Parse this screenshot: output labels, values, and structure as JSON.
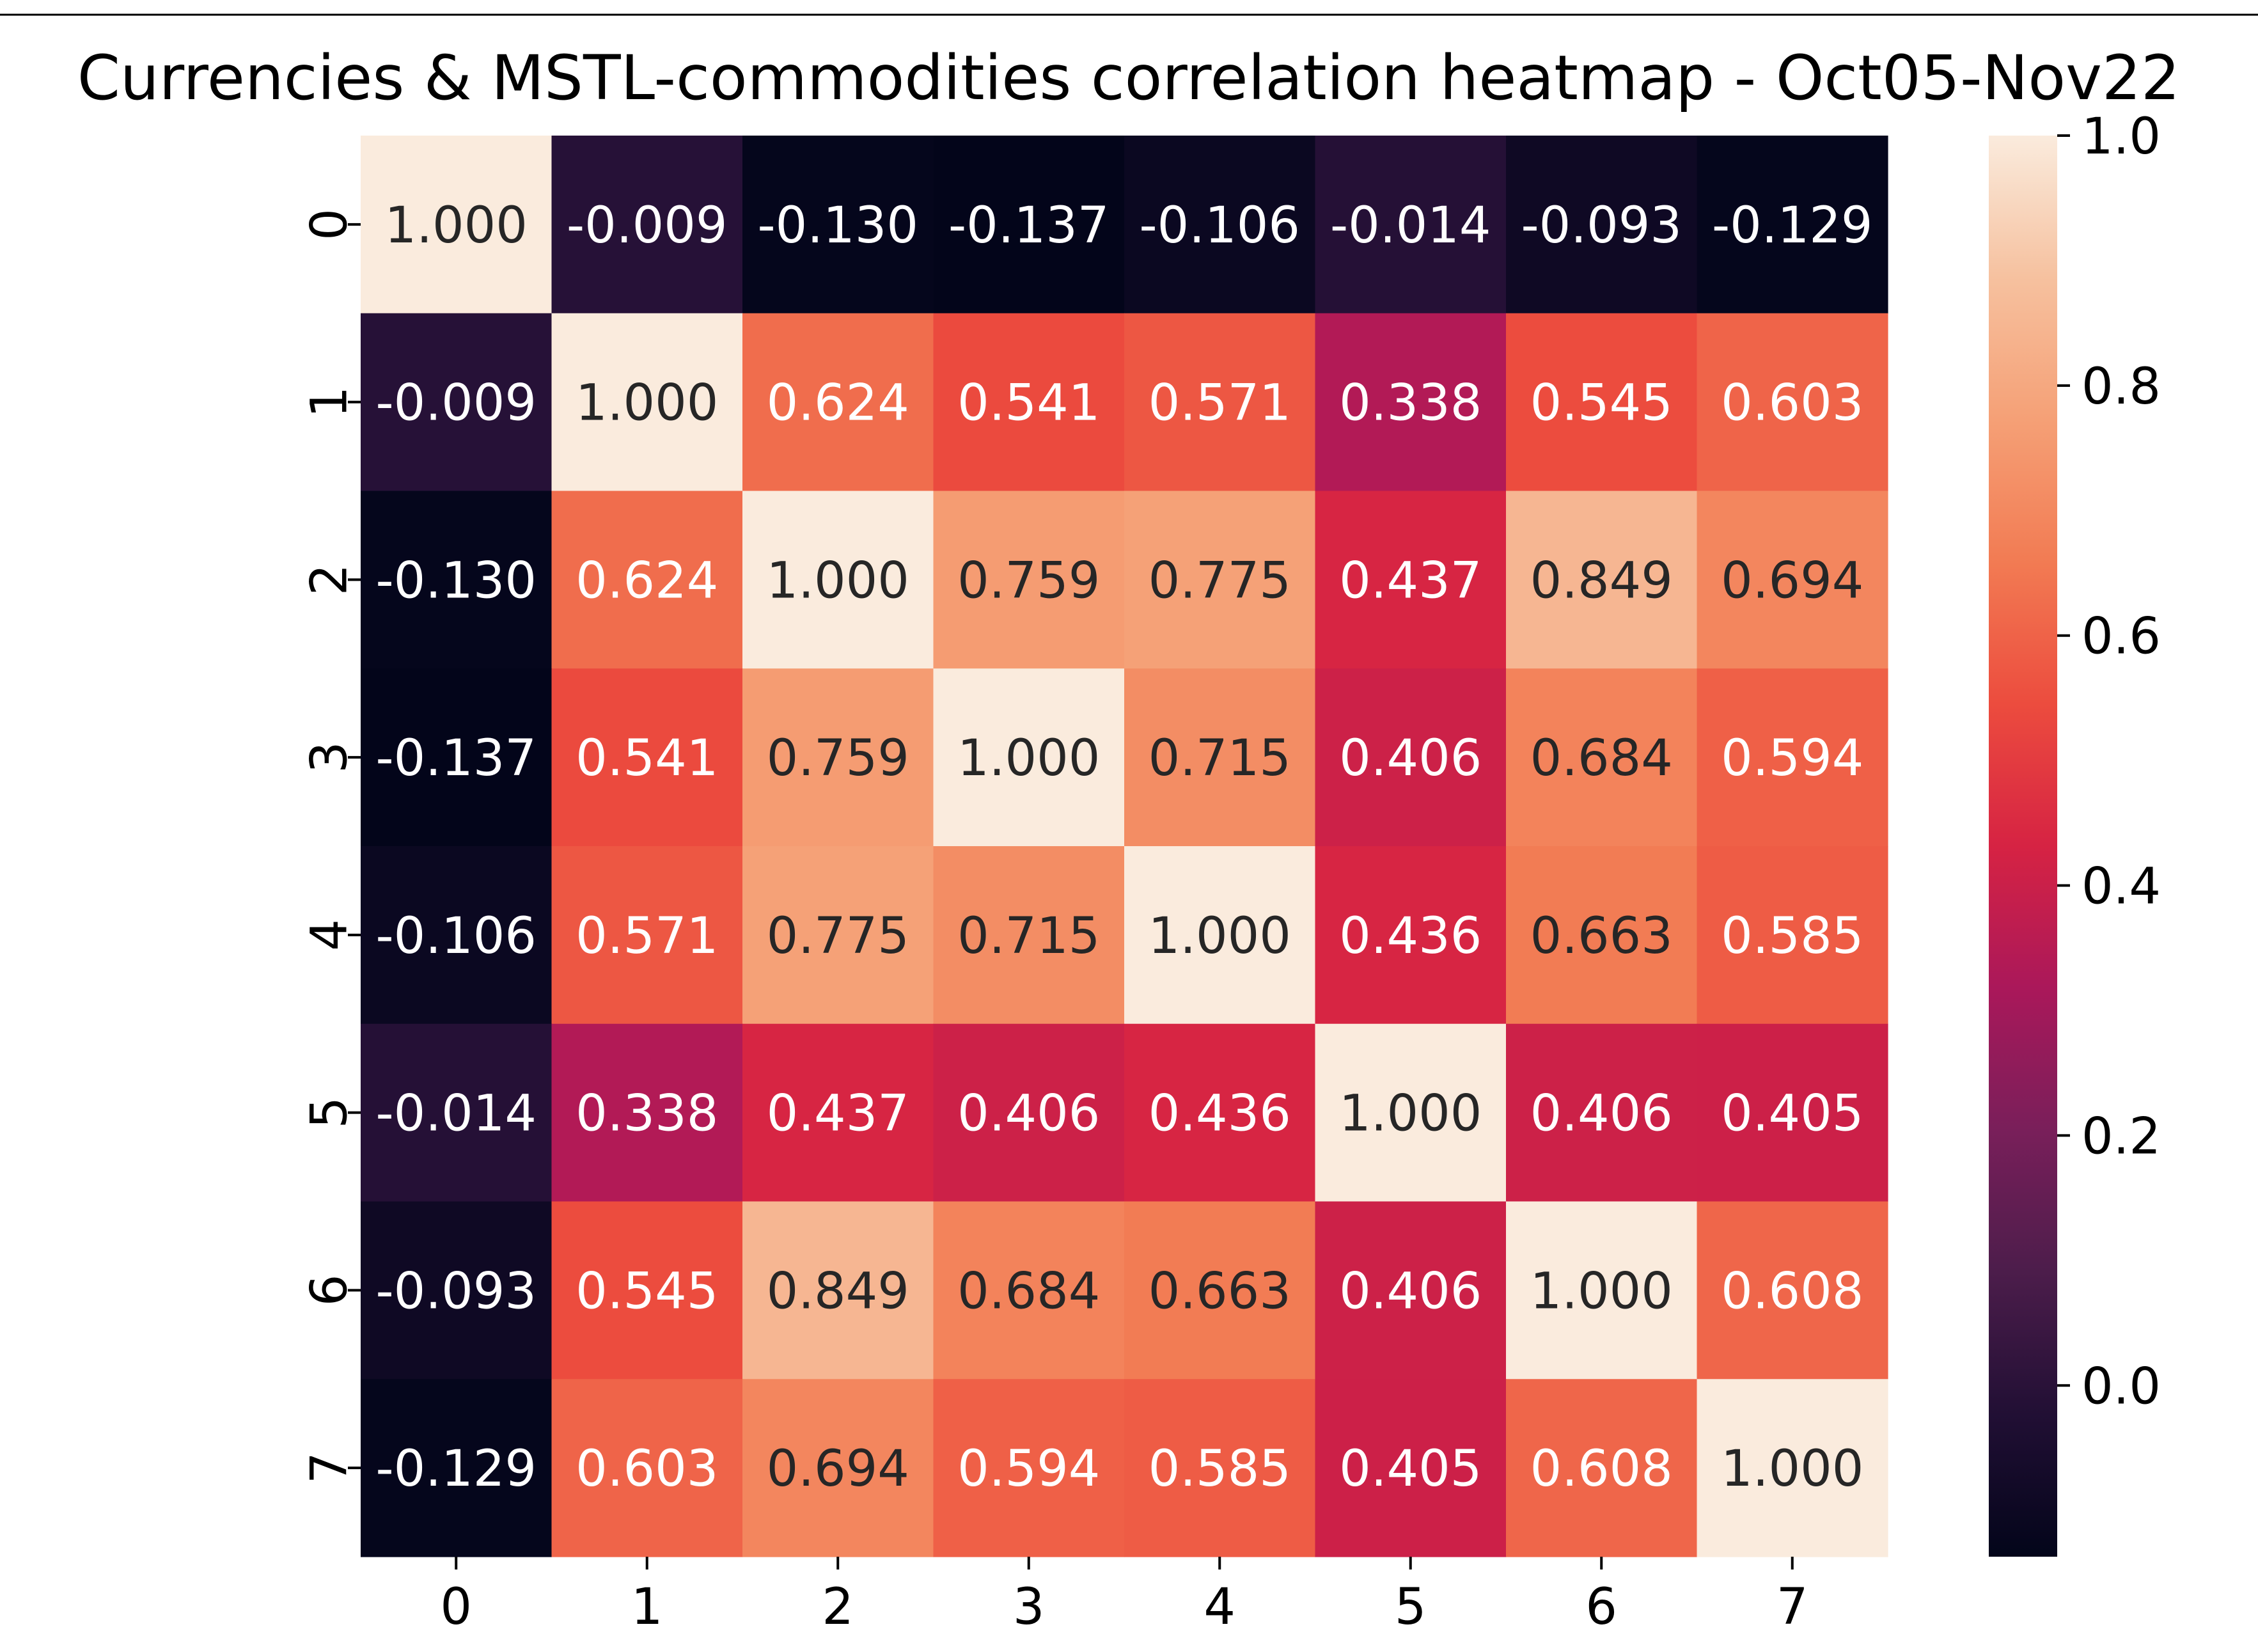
{
  "chart_data": {
    "type": "heatmap",
    "title": "Currencies & MSTL-commodities correlation heatmap - Oct05-Nov22",
    "xlabel": "",
    "ylabel": "",
    "x_tick_labels": [
      "0",
      "1",
      "2",
      "3",
      "4",
      "5",
      "6",
      "7"
    ],
    "y_tick_labels": [
      "0",
      "1",
      "2",
      "3",
      "4",
      "5",
      "6",
      "7"
    ],
    "matrix": [
      [
        1.0,
        -0.009,
        -0.13,
        -0.137,
        -0.106,
        -0.014,
        -0.093,
        -0.129
      ],
      [
        -0.009,
        1.0,
        0.624,
        0.541,
        0.571,
        0.338,
        0.545,
        0.603
      ],
      [
        -0.13,
        0.624,
        1.0,
        0.759,
        0.775,
        0.437,
        0.849,
        0.694
      ],
      [
        -0.137,
        0.541,
        0.759,
        1.0,
        0.715,
        0.406,
        0.684,
        0.594
      ],
      [
        -0.106,
        0.571,
        0.775,
        0.715,
        1.0,
        0.436,
        0.663,
        0.585
      ],
      [
        -0.014,
        0.338,
        0.437,
        0.406,
        0.436,
        1.0,
        0.406,
        0.405
      ],
      [
        -0.093,
        0.545,
        0.849,
        0.684,
        0.663,
        0.406,
        1.0,
        0.608
      ],
      [
        -0.129,
        0.603,
        0.694,
        0.594,
        0.585,
        0.405,
        0.608,
        1.0
      ]
    ],
    "value_format": "3 decimals",
    "vmin": -0.137,
    "vmax": 1.0,
    "colormap": "rocket",
    "colorbar": {
      "ticks": [
        0.0,
        0.2,
        0.4,
        0.6,
        0.8,
        1.0
      ],
      "tick_labels": [
        "0.0",
        "0.2",
        "0.4",
        "0.6",
        "0.8",
        "1.0"
      ]
    },
    "annotation_text_colors": {
      "on_dark": "#ffffff",
      "on_light": "#262626"
    }
  }
}
